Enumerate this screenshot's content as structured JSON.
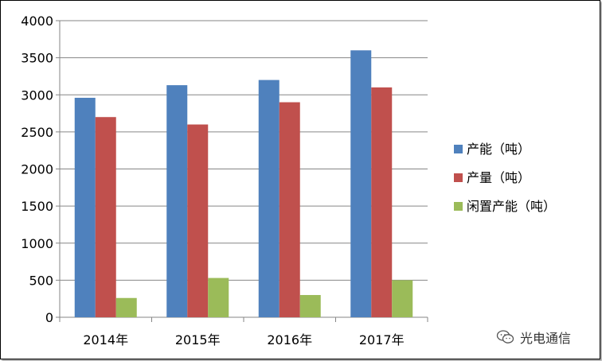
{
  "chart_data": {
    "type": "bar",
    "title": "",
    "xlabel": "",
    "ylabel": "",
    "categories": [
      "2014年",
      "2015年",
      "2016年",
      "2017年"
    ],
    "series": [
      {
        "name": "产能（吨）",
        "color": "#4F81BD",
        "values": [
          2960,
          3130,
          3200,
          3600
        ]
      },
      {
        "name": "产量（吨）",
        "color": "#C0504D",
        "values": [
          2700,
          2600,
          2900,
          3100
        ]
      },
      {
        "name": "闲置产能（吨）",
        "color": "#9BBB59",
        "values": [
          260,
          530,
          300,
          500
        ]
      }
    ],
    "ylim": [
      0,
      4000
    ],
    "yticks": [
      0,
      500,
      1000,
      1500,
      2000,
      2500,
      3000,
      3500,
      4000
    ],
    "grid": true,
    "legend": "right"
  },
  "watermark": {
    "icon": "wechat-icon",
    "text": "光电通信"
  }
}
